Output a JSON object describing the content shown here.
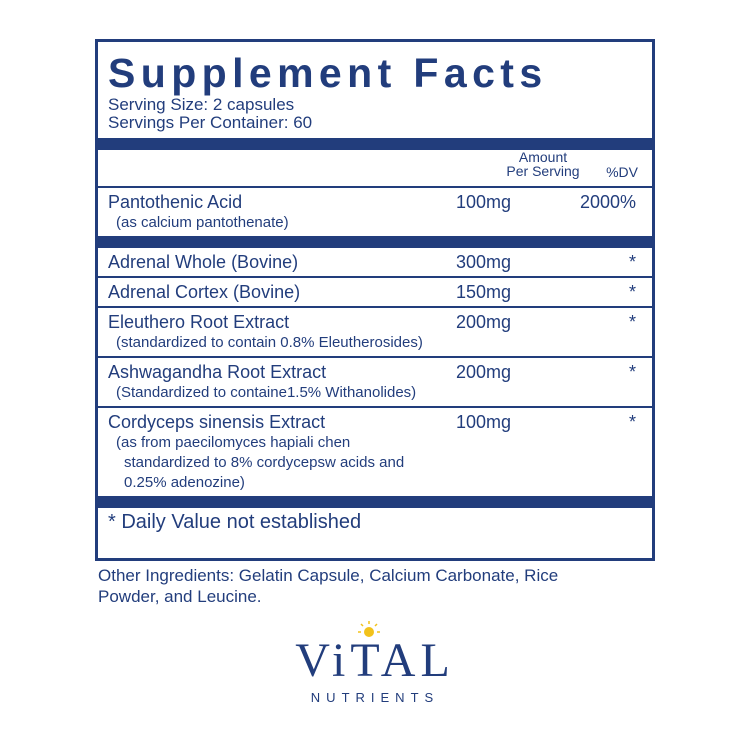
{
  "title": "Supplement Facts",
  "serving_size": "Serving Size: 2 capsules",
  "servings_per_container": "Servings Per Container: 60",
  "table": {
    "amount_header": [
      "Amount",
      "Per Serving"
    ],
    "dv_header": "%DV",
    "sections": [
      [
        {
          "name": "Pantothenic Acid",
          "details": [
            "(as calcium pantothenate)"
          ],
          "amount": "100mg",
          "dv": "2000%"
        }
      ],
      [
        {
          "name": "Adrenal Whole (Bovine)",
          "details": [],
          "amount": "300mg",
          "dv": "*"
        },
        {
          "name": "Adrenal Cortex (Bovine)",
          "details": [],
          "amount": "150mg",
          "dv": "*"
        },
        {
          "name": "Eleuthero Root Extract",
          "details": [
            "(standardized to contain 0.8% Eleutherosides)"
          ],
          "amount": "200mg",
          "dv": "*"
        },
        {
          "name": "Ashwagandha Root Extract",
          "details": [
            "(Standardized to containe1.5% Withanolides)"
          ],
          "amount": "200mg",
          "dv": "*"
        },
        {
          "name": "Cordyceps sinensis Extract",
          "details": [
            "(as from paecilomyces hapiali chen",
            "standardized to 8% cordycepsw acids and",
            "0.25% adenozine)"
          ],
          "amount": "100mg",
          "dv": "*"
        }
      ]
    ]
  },
  "footnote": "* Daily Value not established",
  "other_ingredients": [
    "Other Ingredients: Gelatin Capsule, Calcium Carbonate, Rice",
    "Powder, and Leucine."
  ],
  "brand": {
    "name": "ViTAL",
    "tagline": "NUTRIENTS"
  }
}
